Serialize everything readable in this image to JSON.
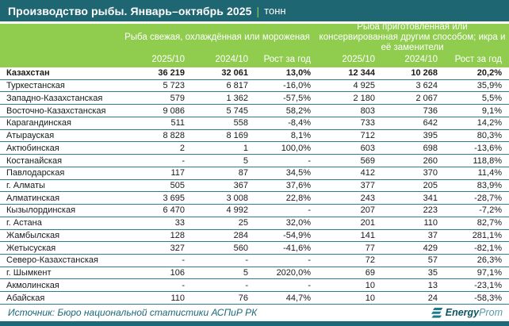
{
  "title": {
    "main": "Производство рыбы. Январь–октябрь 2025",
    "separator": "|",
    "unit": "тонн"
  },
  "colors": {
    "titlebar_teal": "#1f6673",
    "header_green": "#90cd4f",
    "row_line_teal": "#2e7d8c",
    "footer_text_teal": "#1d6878",
    "bottom_bar_teal": "#1d6878"
  },
  "chart_data": {
    "type": "table",
    "title": "Производство рыбы. Январь–октябрь 2025 | тонн",
    "column_groups": [
      "Рыба свежая, охлаждённая или мороженая",
      "Рыба приготовленная или консервированная другим способом; икра и её заменители"
    ],
    "columns": [
      "2025/10",
      "2024/10",
      "Рост за год",
      "2025/10",
      "2024/10",
      "Рост за год"
    ],
    "rows": [
      {
        "region": "Казахстан",
        "bold": true,
        "values": [
          "36 219",
          "32 061",
          "13,0%",
          "12 344",
          "10 268",
          "20,2%"
        ]
      },
      {
        "region": "Туркестанская",
        "bold": false,
        "values": [
          "5 723",
          "6 817",
          "-16,0%",
          "4 925",
          "3 624",
          "35,9%"
        ]
      },
      {
        "region": "Западно-Казахстанская",
        "bold": false,
        "values": [
          "579",
          "1 362",
          "-57,5%",
          "2 180",
          "2 067",
          "5,5%"
        ]
      },
      {
        "region": "Восточно-Казахстанская",
        "bold": false,
        "values": [
          "9 086",
          "5 745",
          "58,2%",
          "803",
          "736",
          "9,1%"
        ]
      },
      {
        "region": "Карагандинская",
        "bold": false,
        "values": [
          "511",
          "558",
          "-8,4%",
          "733",
          "642",
          "14,2%"
        ]
      },
      {
        "region": "Атырауская",
        "bold": false,
        "values": [
          "8 828",
          "8 169",
          "8,1%",
          "712",
          "395",
          "80,3%"
        ]
      },
      {
        "region": "Актюбинская",
        "bold": false,
        "values": [
          "2",
          "1",
          "100,0%",
          "603",
          "698",
          "-13,6%"
        ]
      },
      {
        "region": "Костанайская",
        "bold": false,
        "values": [
          "-",
          "5",
          "-",
          "569",
          "260",
          "118,8%"
        ]
      },
      {
        "region": "Павлодарская",
        "bold": false,
        "values": [
          "117",
          "87",
          "34,5%",
          "412",
          "370",
          "11,4%"
        ]
      },
      {
        "region": "г. Алматы",
        "bold": false,
        "values": [
          "505",
          "367",
          "37,6%",
          "377",
          "205",
          "83,9%"
        ]
      },
      {
        "region": "Алматинская",
        "bold": false,
        "values": [
          "3 695",
          "3 008",
          "22,8%",
          "243",
          "341",
          "-28,7%"
        ]
      },
      {
        "region": "Кызылординская",
        "bold": false,
        "values": [
          "6 470",
          "4 992",
          "-",
          "207",
          "223",
          "-7,2%"
        ]
      },
      {
        "region": "г. Астана",
        "bold": false,
        "values": [
          "33",
          "25",
          "32,0%",
          "201",
          "110",
          "82,7%"
        ]
      },
      {
        "region": "Жамбылская",
        "bold": false,
        "values": [
          "128",
          "284",
          "-54,9%",
          "141",
          "37",
          "281,1%"
        ]
      },
      {
        "region": "Жетысуская",
        "bold": false,
        "values": [
          "327",
          "560",
          "-41,6%",
          "77",
          "429",
          "-82,1%"
        ]
      },
      {
        "region": "Северо-Казахстанская",
        "bold": false,
        "values": [
          "-",
          "-",
          "-",
          "72",
          "57",
          "26,3%"
        ]
      },
      {
        "region": "г. Шымкент",
        "bold": false,
        "values": [
          "106",
          "5",
          "2020,0%",
          "69",
          "35",
          "97,1%"
        ]
      },
      {
        "region": "Акмолинская",
        "bold": false,
        "values": [
          "-",
          "-",
          "-",
          "10",
          "13",
          "-23,1%"
        ]
      },
      {
        "region": "Абайская",
        "bold": false,
        "values": [
          "110",
          "76",
          "44,7%",
          "10",
          "24",
          "-58,3%"
        ]
      }
    ]
  },
  "footer": {
    "source": "Источник: Бюро национальной статистики АСПиР РК",
    "logo_bold": "Energy",
    "logo_light": "Prom"
  }
}
